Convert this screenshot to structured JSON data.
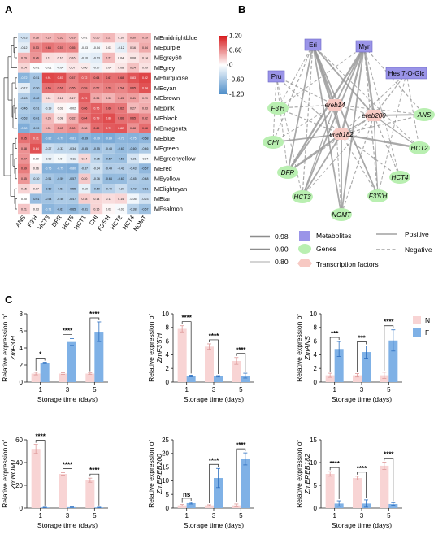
{
  "panels": {
    "a": "A",
    "b": "B",
    "c": "C"
  },
  "colors": {
    "heat_low": "#4f8ec9",
    "heat_mid": "#ffffff",
    "heat_high": "#d7191c",
    "bar_N": "#f8d4d4",
    "bar_F": "#7fb1e6",
    "metabolite": "#9a94e8",
    "gene": "#b9efb1",
    "tf": "#f7c9c3",
    "edge": "#9a9a9a"
  },
  "heatmap": {
    "rows": [
      "MEmidnightblue",
      "MEpurple",
      "MEgrey60",
      "MEgrey",
      "MEturquoise",
      "MEcyan",
      "MEbrown",
      "MEpink",
      "MEblack",
      "MEmagenta",
      "MEblue",
      "MEgreen",
      "MEgreenyellow",
      "MEred",
      "MEyellow",
      "MElightcyan",
      "MEtan",
      "MEsalmon"
    ],
    "cols": [
      "ANS",
      "F3'H",
      "HCT3",
      "DFR",
      "HCT5",
      "HCT1",
      "CHI",
      "F3'5'H",
      "HCT2",
      "HCT4",
      "NOMT"
    ],
    "values": [
      [
        -0.23,
        0.28,
        0.29,
        0.35,
        0.29,
        0.01,
        0.2,
        0.27,
        0.1,
        0.3,
        0.29
      ],
      [
        -0.12,
        0.53,
        0.64,
        0.57,
        0.55,
        -0.03,
        -0.04,
        0.03,
        -0.12,
        0.16,
        0.34
      ],
      [
        0.29,
        0.46,
        0.11,
        0.1,
        0.16,
        -0.1,
        -0.13,
        0.27,
        0.04,
        0.08,
        0.14
      ],
      [
        0.14,
        -0.01,
        -0.01,
        -0.04,
        0.07,
        0.06,
        -0.07,
        0.04,
        0.08,
        0.24,
        0.09
      ],
      [
        -0.72,
        -0.51,
        0.91,
        0.87,
        0.57,
        0.72,
        0.64,
        0.67,
        0.68,
        0.83,
        0.92
      ],
      [
        -0.12,
        -0.5,
        0.65,
        0.61,
        0.55,
        0.59,
        0.52,
        0.59,
        0.54,
        0.65,
        0.84
      ],
      [
        -0.43,
        -0.62,
        0.11,
        0.16,
        0.17,
        0.79,
        0.36,
        0.3,
        0.43,
        0.41,
        0.29
      ],
      [
        -0.46,
        -0.51,
        -0.19,
        0.02,
        -0.02,
        0.66,
        0.76,
        0.66,
        0.62,
        0.27,
        0.33
      ],
      [
        -0.53,
        -0.61,
        0.26,
        0.08,
        0.32,
        0.64,
        0.79,
        0.88,
        0.66,
        0.65,
        0.52
      ],
      [
        -0.8,
        -0.59,
        0.31,
        0.43,
        0.5,
        0.38,
        0.69,
        0.79,
        0.82,
        0.48,
        0.68
      ],
      [
        0.65,
        0.71,
        -0.82,
        -0.79,
        -0.81,
        -0.69,
        -0.79,
        -0.84,
        -0.72,
        -0.75,
        -0.68
      ],
      [
        0.48,
        0.84,
        -0.27,
        -0.33,
        -0.34,
        -0.55,
        -0.55,
        -0.48,
        -0.63,
        -0.6,
        -0.46
      ],
      [
        0.47,
        0.0,
        -0.09,
        -0.04,
        -0.11,
        0.14,
        -0.35,
        -0.57,
        -0.59,
        -0.21,
        -0.04
      ],
      [
        0.59,
        0.06,
        -0.76,
        -0.75,
        -0.8,
        -0.37,
        -0.24,
        -0.44,
        -0.42,
        -0.43,
        -0.67
      ],
      [
        0.45,
        -0.3,
        -0.51,
        -0.59,
        -0.57,
        0.2,
        -0.36,
        -0.64,
        -0.63,
        -0.45,
        -0.48
      ],
      [
        0.15,
        0.07,
        -0.6,
        -0.51,
        -0.55,
        -0.1,
        -0.5,
        -0.4,
        -0.27,
        -0.49,
        -0.51
      ],
      [
        -0.0,
        -0.61,
        -0.54,
        -0.46,
        -0.47,
        0.18,
        0.14,
        0.11,
        0.14,
        -0.05,
        -0.23
      ],
      [
        0.21,
        0.03,
        -0.71,
        -0.61,
        -0.65,
        -0.51,
        0.15,
        0.02,
        -0.03,
        -0.38,
        -0.57
      ]
    ],
    "colorbar_ticks": [
      "1.20",
      "0.60",
      "0",
      "-0.60",
      "-1.20"
    ]
  },
  "network": {
    "metabolites": [
      "Eri",
      "Myr",
      "Pru",
      "Hes 7-O-Glc"
    ],
    "genes": [
      "F3'H",
      "ANS",
      "CHI",
      "HCT2",
      "DFR",
      "HCT4",
      "HCT3",
      "F3'5'H",
      "NOMT"
    ],
    "tfs": [
      "ereb14",
      "ereb200",
      "ereb182"
    ],
    "legend_weights": [
      "0.98",
      "0.90",
      "0.80"
    ],
    "legend_types": [
      "Metabolites",
      "Genes",
      "Transcription factors"
    ],
    "legend_signs": [
      "Positive",
      "Negative"
    ]
  },
  "chart_data": [
    {
      "type": "bar",
      "title": "",
      "ylabel_1": "Relative expression of",
      "ylabel_gene": "ZmF3'H",
      "xlabel": "Storage time (days)",
      "categories": [
        "1",
        "3",
        "5"
      ],
      "ylim": [
        0,
        8
      ],
      "yticks": [
        0,
        2,
        4,
        6,
        8
      ],
      "series": [
        {
          "name": "N",
          "values": [
            1.0,
            1.0,
            1.0
          ],
          "err": [
            0.15,
            0.1,
            0.08
          ]
        },
        {
          "name": "F",
          "values": [
            2.25,
            4.7,
            5.9
          ],
          "err": [
            0.08,
            0.4,
            1.15
          ]
        }
      ],
      "sig": [
        "*",
        "****",
        "****"
      ]
    },
    {
      "type": "bar",
      "title": "",
      "ylabel_1": "Relative expression of",
      "ylabel_gene": "ZmF3'5'H",
      "xlabel": "Storage time (days)",
      "categories": [
        "1",
        "3",
        "5"
      ],
      "ylim": [
        0,
        10
      ],
      "yticks": [
        0,
        2,
        4,
        6,
        8,
        10
      ],
      "series": [
        {
          "name": "N",
          "values": [
            7.8,
            5.2,
            3.1
          ],
          "err": [
            0.45,
            0.4,
            0.5
          ]
        },
        {
          "name": "F",
          "values": [
            0.9,
            0.85,
            0.95
          ],
          "err": [
            0.12,
            0.1,
            0.35
          ]
        }
      ],
      "sig": [
        "****",
        "****",
        "****"
      ]
    },
    {
      "type": "bar",
      "title": "",
      "ylabel_1": "Relative expression of",
      "ylabel_gene": "ZmANS",
      "xlabel": "Storage time (days)",
      "categories": [
        "1",
        "3",
        "5"
      ],
      "ylim": [
        0,
        10
      ],
      "yticks": [
        0,
        2,
        4,
        6,
        8,
        10
      ],
      "series": [
        {
          "name": "N",
          "values": [
            1.0,
            1.0,
            1.0
          ],
          "err": [
            0.3,
            0.25,
            0.45
          ]
        },
        {
          "name": "F",
          "values": [
            4.85,
            4.4,
            6.1
          ],
          "err": [
            1.1,
            0.9,
            1.55
          ]
        }
      ],
      "sig": [
        "***",
        "***",
        "****"
      ]
    },
    {
      "type": "bar",
      "title": "",
      "ylabel_1": "Relative expression of",
      "ylabel_gene": "ZmNOMT",
      "xlabel": "Storage time (days)",
      "categories": [
        "1",
        "3",
        "5"
      ],
      "ylim": [
        0,
        60
      ],
      "yticks": [
        0,
        20,
        40,
        60
      ],
      "series": [
        {
          "name": "N",
          "values": [
            52,
            30,
            24.5
          ],
          "err": [
            4,
            1.0,
            1.8
          ]
        },
        {
          "name": "F",
          "values": [
            0.6,
            0.8,
            0.6
          ],
          "err": [
            0.2,
            0.2,
            0.2
          ]
        }
      ],
      "sig": [
        "****",
        "****",
        "****"
      ]
    },
    {
      "type": "bar",
      "title": "",
      "ylabel_1": "Relative expression of",
      "ylabel_gene": "ZmEREB200",
      "xlabel": "Storage time (days)",
      "categories": [
        "1",
        "3",
        "5"
      ],
      "ylim": [
        0,
        25
      ],
      "yticks": [
        0,
        5,
        10,
        15,
        20,
        25
      ],
      "series": [
        {
          "name": "N",
          "values": [
            1.0,
            1.0,
            1.0
          ],
          "err": [
            0.3,
            0.2,
            0.5
          ]
        },
        {
          "name": "F",
          "values": [
            1.8,
            11,
            18
          ],
          "err": [
            0.3,
            3.5,
            2.2
          ]
        }
      ],
      "sig": [
        "ns",
        "****",
        "****"
      ]
    },
    {
      "type": "bar",
      "title": "",
      "ylabel_1": "Relative expression of",
      "ylabel_gene": "ZmEREB182",
      "xlabel": "Storage time (days)",
      "categories": [
        "1",
        "3",
        "5"
      ],
      "ylim": [
        0,
        15
      ],
      "yticks": [
        0,
        5,
        10,
        15
      ],
      "series": [
        {
          "name": "N",
          "values": [
            7.5,
            6.6,
            9.3
          ],
          "err": [
            0.5,
            0.4,
            0.8
          ]
        },
        {
          "name": "F",
          "values": [
            1.0,
            1.0,
            0.9
          ],
          "err": [
            0.6,
            0.8,
            0.3
          ]
        }
      ],
      "sig": [
        "****",
        "****",
        "****"
      ]
    }
  ],
  "bar_legend": [
    "N",
    "F"
  ]
}
